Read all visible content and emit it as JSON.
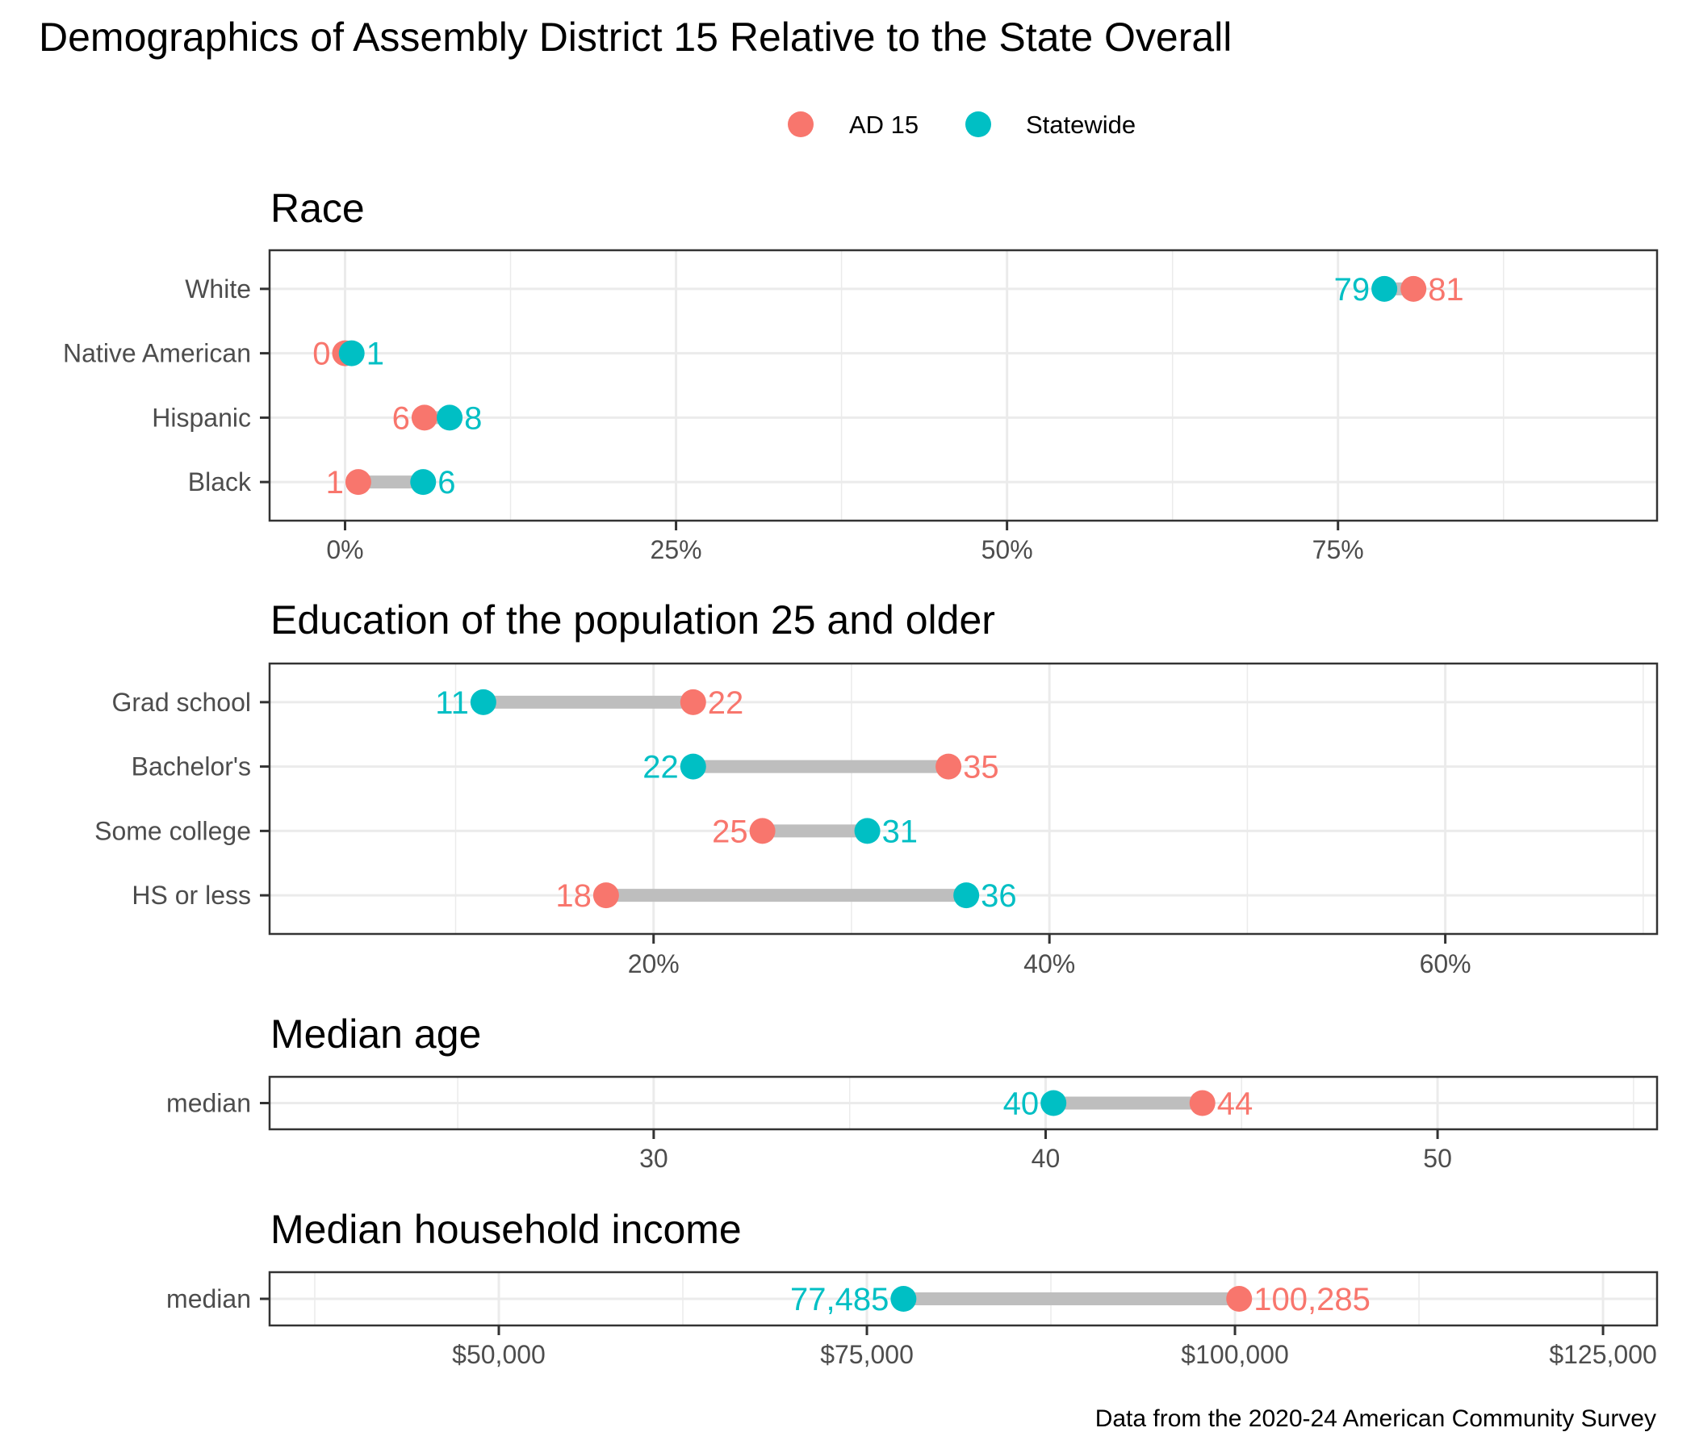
{
  "title": "Demographics of Assembly District 15 Relative to the State Overall",
  "caption": "Data from the 2020-24 American Community Survey",
  "legend": {
    "position": "top",
    "items": [
      {
        "label": "AD 15",
        "color": "#F8766D"
      },
      {
        "label": "Statewide",
        "color": "#00BFC4"
      }
    ]
  },
  "colors": {
    "ad15": "#F8766D",
    "statewide": "#00BFC4",
    "segment": "#BEBEBE",
    "grid": "#EBEBEB",
    "border": "#333333",
    "axis_text": "#4D4D4D"
  },
  "chart_data": [
    {
      "type": "dumbbell",
      "title": "Race",
      "xlabel": "",
      "ylabel": "",
      "unit": "percent",
      "xlim": [
        -5.7,
        99.1
      ],
      "major_ticks": [
        0,
        25,
        50,
        75
      ],
      "tick_labels": [
        "0%",
        "25%",
        "50%",
        "75%"
      ],
      "minor_ticks": [
        12.5,
        37.5,
        62.5,
        87.5
      ],
      "grid": true,
      "categories": [
        "White",
        "Native American",
        "Hispanic",
        "Black"
      ],
      "series": [
        {
          "name": "AD 15",
          "values": [
            80.7,
            0.0,
            6.0,
            1.0
          ],
          "labels": [
            "81",
            "0",
            "6",
            "1"
          ]
        },
        {
          "name": "Statewide",
          "values": [
            78.5,
            0.5,
            7.9,
            5.9
          ],
          "labels": [
            "79",
            "1",
            "8",
            "6"
          ]
        }
      ]
    },
    {
      "type": "dumbbell",
      "title": "Education of the population 25 and older",
      "xlabel": "",
      "ylabel": "",
      "unit": "percent",
      "xlim": [
        0.6,
        70.7
      ],
      "major_ticks": [
        20,
        40,
        60
      ],
      "tick_labels": [
        "20%",
        "40%",
        "60%"
      ],
      "minor_ticks": [
        10,
        30,
        50,
        70
      ],
      "grid": true,
      "categories": [
        "Grad school",
        "Bachelor's",
        "Some college",
        "HS or less"
      ],
      "series": [
        {
          "name": "AD 15",
          "values": [
            22.0,
            34.9,
            25.5,
            17.6
          ],
          "labels": [
            "22",
            "35",
            "25",
            "18"
          ]
        },
        {
          "name": "Statewide",
          "values": [
            11.4,
            22.0,
            30.8,
            35.8
          ],
          "labels": [
            "11",
            "22",
            "31",
            "36"
          ]
        }
      ]
    },
    {
      "type": "dumbbell",
      "title": "Median age",
      "xlabel": "",
      "ylabel": "",
      "unit": "years",
      "xlim": [
        20.2,
        55.6
      ],
      "major_ticks": [
        30,
        40,
        50
      ],
      "tick_labels": [
        "30",
        "40",
        "50"
      ],
      "minor_ticks": [
        25,
        35,
        45,
        55
      ],
      "grid": true,
      "categories": [
        "median"
      ],
      "series": [
        {
          "name": "AD 15",
          "values": [
            44.0
          ],
          "labels": [
            "44"
          ]
        },
        {
          "name": "Statewide",
          "values": [
            40.2
          ],
          "labels": [
            "40"
          ]
        }
      ]
    },
    {
      "type": "dumbbell",
      "title": "Median household income",
      "xlabel": "",
      "ylabel": "",
      "unit": "dollars",
      "xlim": [
        34430,
        128670
      ],
      "major_ticks": [
        50000,
        75000,
        100000,
        125000
      ],
      "tick_labels": [
        "$50,000",
        "$75,000",
        "$100,000",
        "$125,000"
      ],
      "minor_ticks": [
        37500,
        62500,
        87500,
        112500
      ],
      "grid": true,
      "categories": [
        "median"
      ],
      "series": [
        {
          "name": "AD 15",
          "values": [
            100285
          ],
          "labels": [
            "100,285"
          ]
        },
        {
          "name": "Statewide",
          "values": [
            77485
          ],
          "labels": [
            "77,485"
          ]
        }
      ]
    }
  ]
}
